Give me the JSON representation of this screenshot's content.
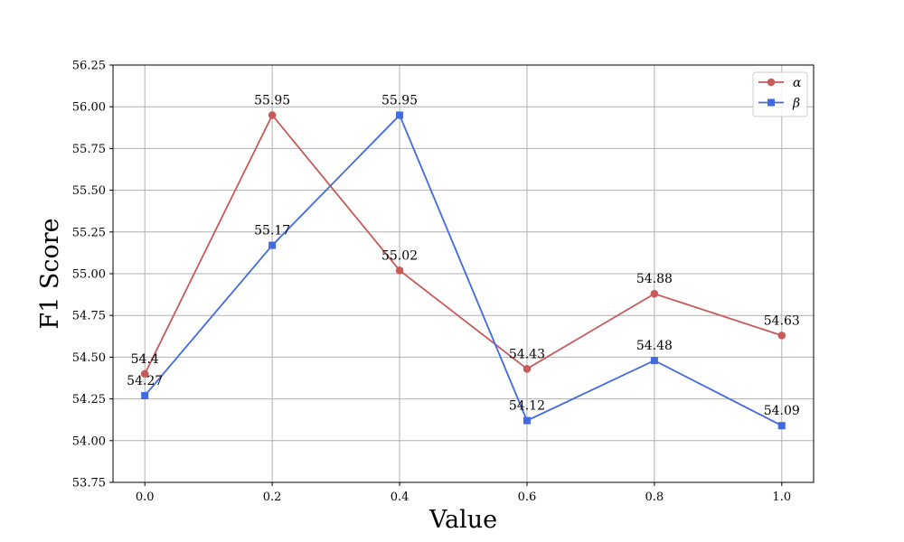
{
  "chart_data": {
    "type": "line",
    "title": "",
    "xlabel": "Value",
    "ylabel": "F1 Score",
    "x": [
      0.0,
      0.2,
      0.4,
      0.6,
      0.8,
      1.0
    ],
    "x_tick_labels": [
      "0.0",
      "0.2",
      "0.4",
      "0.6",
      "0.8",
      "1.0"
    ],
    "xlim": [
      -0.05,
      1.05
    ],
    "ylim": [
      53.75,
      56.25
    ],
    "y_ticks": [
      53.75,
      54.0,
      54.25,
      54.5,
      54.75,
      55.0,
      55.25,
      55.5,
      55.75,
      56.0,
      56.25
    ],
    "y_tick_labels": [
      "53.75",
      "54.00",
      "54.25",
      "54.50",
      "54.75",
      "55.00",
      "55.25",
      "55.50",
      "55.75",
      "56.00",
      "56.25"
    ],
    "grid": true,
    "legend_position": "top-right",
    "series": [
      {
        "name": "α",
        "color": "#c85a5a",
        "marker": "circle",
        "values": [
          54.4,
          55.95,
          55.02,
          54.43,
          54.88,
          54.63
        ],
        "labels": [
          "54.4",
          "55.95",
          "55.02",
          "54.43",
          "54.88",
          "54.63"
        ]
      },
      {
        "name": "β",
        "color": "#4169e1",
        "marker": "square",
        "values": [
          54.27,
          55.17,
          55.95,
          54.12,
          54.48,
          54.09
        ],
        "labels": [
          "54.27",
          "55.17",
          "55.95",
          "54.12",
          "54.48",
          "54.09"
        ]
      }
    ]
  }
}
